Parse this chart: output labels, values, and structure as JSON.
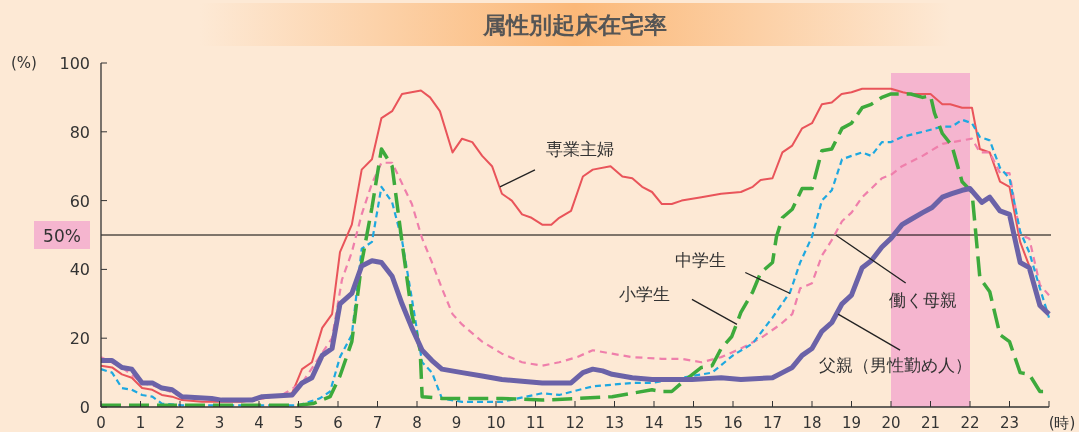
{
  "chart_data": {
    "type": "line",
    "title": "属性別起床在宅率",
    "xlabel": "(時)",
    "ylabel": "(%)",
    "xlim": [
      0,
      24
    ],
    "ylim": [
      0,
      100
    ],
    "xticks": [
      0,
      1,
      2,
      3,
      4,
      5,
      6,
      7,
      8,
      9,
      10,
      11,
      12,
      13,
      14,
      15,
      16,
      17,
      18,
      19,
      20,
      21,
      22,
      23,
      {
        "value": 24,
        "label": null
      }
    ],
    "yticks": [
      0,
      20,
      40,
      60,
      80,
      100
    ],
    "ref_lines": [
      {
        "axis": "y",
        "value": 50,
        "label": "50%",
        "color": "#000000"
      }
    ],
    "bands": [
      {
        "axis": "x",
        "from": 20,
        "to": 22,
        "color": "#f5b5cf"
      }
    ],
    "series": [
      {
        "color": "#e9545a",
        "line_style": "solid",
        "x": [
          0,
          0.28,
          0.53,
          0.78,
          1.04,
          1.3,
          1.54,
          1.8,
          2.05,
          2.56,
          3.57,
          4.08,
          4.84,
          5.09,
          5.34,
          5.6,
          5.85,
          6.05,
          6.35,
          6.6,
          6.86,
          7.1,
          7.37,
          7.62,
          8.1,
          8.33,
          8.58,
          8.9,
          9.14,
          9.4,
          9.65,
          9.9,
          10.15,
          10.4,
          10.66,
          10.9,
          11.17,
          11.4,
          11.6,
          11.9,
          12.2,
          12.45,
          12.9,
          13.2,
          13.45,
          13.7,
          13.95,
          14.2,
          14.45,
          14.7,
          15.2,
          15.7,
          16.2,
          16.5,
          16.7,
          17,
          17.25,
          17.5,
          17.75,
          18,
          18.25,
          18.5,
          18.75,
          19,
          19.27,
          19.5,
          19.8,
          20,
          20.3,
          20.5,
          21,
          21.3,
          21.5,
          21.8,
          22.05,
          22.25,
          22.5,
          22.76,
          23,
          23.27,
          23.5
        ],
        "values": [
          12,
          11.5,
          9.5,
          8.5,
          5.5,
          5,
          3.5,
          3,
          2,
          1.5,
          1.5,
          2.5,
          4,
          11,
          13,
          23,
          27,
          45,
          53,
          69,
          72,
          84,
          86,
          91,
          92,
          90,
          86,
          74,
          78,
          77,
          73,
          70,
          62,
          60,
          56,
          55,
          53,
          53,
          55,
          57,
          67,
          69,
          70,
          67,
          66.5,
          64,
          62.5,
          59,
          59,
          60,
          61,
          62,
          62.5,
          64,
          66,
          66.5,
          74,
          76,
          81,
          82.5,
          88,
          88.5,
          91,
          91.5,
          92.5,
          92.5,
          92.5,
          92.5,
          91.5,
          91,
          91,
          88,
          88,
          87,
          87,
          75,
          74,
          65.5,
          64,
          48,
          41
        ]
      },
      {
        "color": "#ef7fab",
        "line_style": "dashed",
        "x": [
          0,
          0.53,
          1.04,
          1.54,
          2.05,
          3.05,
          4.08,
          4.58,
          5.09,
          5.5,
          5.85,
          6.1,
          6.35,
          6.6,
          6.86,
          7.1,
          7.37,
          7.62,
          7.87,
          8.13,
          8.38,
          8.63,
          8.9,
          9.14,
          9.65,
          10.15,
          10.66,
          11.17,
          11.6,
          12.05,
          12.45,
          12.94,
          13.45,
          14.2,
          14.7,
          15.2,
          15.7,
          16.2,
          16.7,
          17.2,
          17.5,
          17.7,
          18,
          18.25,
          18.5,
          18.76,
          19,
          19.27,
          19.5,
          19.77,
          20,
          20.28,
          20.8,
          21.3,
          21.8,
          22.05,
          22.25,
          22.5,
          22.76,
          23,
          23.27,
          23.5,
          23.77,
          24
        ],
        "values": [
          14.5,
          11.5,
          7,
          5.5,
          3,
          2,
          2.5,
          3.5,
          7,
          14,
          20,
          37,
          45,
          56,
          65,
          71,
          71,
          65,
          59,
          49,
          42,
          34.5,
          27,
          24,
          19,
          15.5,
          13,
          12,
          13,
          14.5,
          16.5,
          15.5,
          14.5,
          14,
          14,
          13,
          14.5,
          17,
          20,
          24,
          27,
          34.5,
          36,
          44,
          48.5,
          54,
          56.5,
          61,
          63.5,
          66.5,
          67.5,
          70,
          73,
          76.5,
          77.5,
          78,
          74,
          74,
          68,
          68,
          50,
          49,
          35.5,
          32.5
        ]
      },
      {
        "color": "#1ea8e0",
        "line_style": "dotted",
        "x": [
          0,
          0.28,
          0.53,
          0.78,
          1.04,
          1.3,
          1.54,
          2.05,
          3,
          4,
          5,
          5.54,
          5.8,
          6.05,
          6.35,
          6.6,
          6.86,
          7.1,
          7.37,
          7.62,
          7.87,
          8.13,
          8.38,
          8.63,
          9.14,
          10.15,
          11.17,
          11.6,
          12.45,
          13.45,
          13.95,
          14.45,
          15.47,
          16,
          16.5,
          17,
          17.45,
          17.7,
          18,
          18.25,
          18.5,
          18.76,
          19,
          19.27,
          19.5,
          19.77,
          20,
          20.28,
          20.8,
          21.3,
          21.54,
          21.8,
          22.05,
          22.25,
          22.5,
          22.76,
          23,
          23.27,
          23.5,
          23.77,
          24
        ],
        "values": [
          11,
          10,
          5.5,
          5,
          3.5,
          3,
          1,
          0.5,
          0.5,
          0.5,
          0.5,
          2.5,
          4.5,
          14.5,
          21,
          46,
          48,
          64,
          59.5,
          48.5,
          31.5,
          13,
          10,
          2.5,
          1.5,
          1.5,
          4,
          3.5,
          6,
          7,
          7,
          8,
          10,
          15,
          18.5,
          26,
          33.5,
          42,
          49.5,
          60,
          63,
          72,
          73,
          74,
          73,
          77,
          77,
          78.5,
          80,
          81.5,
          81.5,
          83.5,
          82.5,
          78.5,
          77.5,
          69.5,
          66.5,
          51,
          45,
          34.5,
          26
        ]
      },
      {
        "color": "#3daa3c",
        "line_style": "dashed",
        "x": [
          0,
          1,
          2,
          3,
          4,
          5,
          5.37,
          5.8,
          6.05,
          6.35,
          6.6,
          6.86,
          7.1,
          7.37,
          7.62,
          7.87,
          8.08,
          8.13,
          8.63,
          10.15,
          11.17,
          12.94,
          13.45,
          13.95,
          14.2,
          14.45,
          14.7,
          15.2,
          15.47,
          15.7,
          15.97,
          16.2,
          16.5,
          16.7,
          17,
          17.1,
          17.25,
          17.5,
          17.75,
          18,
          18.25,
          18.5,
          18.76,
          19,
          19.27,
          19.5,
          19.77,
          20,
          20.5,
          20.8,
          21,
          21.1,
          21.3,
          21.54,
          21.8,
          22.05,
          22.25,
          22.5,
          22.76,
          23,
          23.27,
          23.5,
          23.77,
          24
        ],
        "values": [
          0.5,
          0.5,
          0.5,
          0.5,
          0.5,
          0.5,
          1,
          3,
          9,
          19,
          42,
          58,
          75,
          70,
          48,
          27,
          16.5,
          3,
          2.5,
          2.5,
          2,
          3,
          4,
          5,
          4.5,
          4.5,
          7,
          11.5,
          12,
          17,
          20.5,
          27.5,
          33.5,
          39,
          42,
          49.5,
          55,
          57.5,
          63.5,
          63.5,
          74.5,
          75,
          81,
          82.5,
          87,
          88,
          90,
          91,
          91,
          90,
          90.5,
          85.5,
          79.5,
          76,
          65.5,
          62.5,
          37.5,
          33.5,
          21,
          19,
          10,
          9.5,
          4.5,
          4.5
        ]
      },
      {
        "color": "#6b62a8",
        "line_style": "solid",
        "x": [
          0,
          0.28,
          0.53,
          0.78,
          1.04,
          1.3,
          1.54,
          1.8,
          2.05,
          2.8,
          3.05,
          3.82,
          4.08,
          4.84,
          5.09,
          5.34,
          5.6,
          5.85,
          6.05,
          6.35,
          6.6,
          6.86,
          7.1,
          7.37,
          7.62,
          7.87,
          8.13,
          8.38,
          8.63,
          9.14,
          9.65,
          10.15,
          10.66,
          11.17,
          11.6,
          11.9,
          12.2,
          12.45,
          12.7,
          12.94,
          13.45,
          13.95,
          14.96,
          15.7,
          16.2,
          17,
          17.25,
          17.5,
          17.75,
          18,
          18.25,
          18.5,
          18.76,
          19,
          19.27,
          19.5,
          19.77,
          20,
          20.28,
          20.5,
          20.8,
          21.04,
          21.3,
          21.54,
          21.8,
          22,
          22.3,
          22.5,
          22.76,
          23,
          23.27,
          23.5,
          23.77,
          24
        ],
        "values": [
          13.5,
          13.5,
          11.5,
          11,
          7,
          7,
          5.5,
          5,
          3,
          2.5,
          2,
          2,
          3,
          3.5,
          7,
          8.5,
          15,
          17,
          30,
          33,
          41,
          42.5,
          42,
          38,
          30,
          23,
          16.5,
          13.5,
          11,
          10,
          9,
          8,
          7.5,
          7,
          7,
          7,
          10,
          11,
          10.5,
          9.5,
          8.5,
          8,
          8,
          8.5,
          8,
          8.5,
          10,
          11.5,
          15,
          17,
          22,
          24.5,
          30,
          32.5,
          40.5,
          42.5,
          46.5,
          49,
          53,
          54.5,
          56.5,
          58,
          61,
          62,
          63,
          63.5,
          59.5,
          61,
          57,
          56,
          42,
          40.5,
          29.5,
          27
        ]
      }
    ],
    "annotations": [
      {
        "text": "専業主婦",
        "x": 10.1,
        "y": 64
      },
      {
        "text": "中学生",
        "x": 17.45,
        "y": 33
      },
      {
        "text": "小学生",
        "x": 16.1,
        "y": 24
      },
      {
        "text": "働く母親",
        "x": 18.6,
        "y": 50
      },
      {
        "text": "父親（男性勤め人）",
        "x": 18.66,
        "y": 27
      }
    ]
  }
}
